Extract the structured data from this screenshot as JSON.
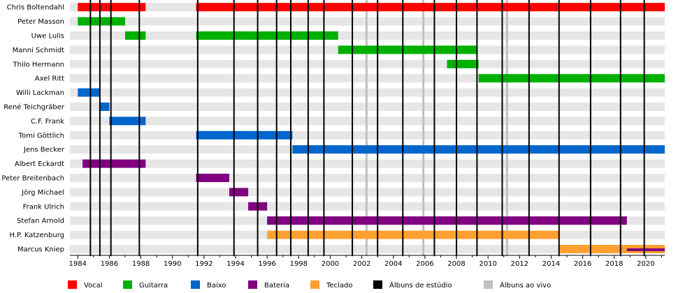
{
  "chart_data": {
    "type": "timeline",
    "xlim": [
      1983.5,
      2021.2
    ],
    "x_ticks": [
      1984,
      1986,
      1988,
      1990,
      1992,
      1994,
      1996,
      1998,
      2000,
      2002,
      2004,
      2006,
      2008,
      2010,
      2012,
      2014,
      2016,
      2018,
      2020
    ],
    "x_minor_ticks_per_year": true,
    "grid": "alternating row stripes",
    "legend_placement": "bottom",
    "roles": [
      {
        "key": "vocal",
        "label": "Vocal",
        "color": "#ff0000"
      },
      {
        "key": "guitarra",
        "label": "Guitarra",
        "color": "#00b000"
      },
      {
        "key": "baixo",
        "label": "Baixo",
        "color": "#0066cc"
      },
      {
        "key": "bateria",
        "label": "Bateria",
        "color": "#800080"
      },
      {
        "key": "teclado",
        "label": "Teclado",
        "color": "#ffa030"
      }
    ],
    "members": [
      {
        "name": "Chris Boltendahl",
        "periods": [
          {
            "role": "vocal",
            "start": 1984.0,
            "end": 1988.3
          },
          {
            "role": "vocal",
            "start": 1991.5,
            "end": 2021.2
          }
        ]
      },
      {
        "name": "Peter Masson",
        "periods": [
          {
            "role": "guitarra",
            "start": 1984.0,
            "end": 1987.0
          }
        ]
      },
      {
        "name": "Uwe Lulis",
        "periods": [
          {
            "role": "guitarra",
            "start": 1987.0,
            "end": 1988.3
          },
          {
            "role": "guitarra",
            "start": 1991.5,
            "end": 2000.5
          }
        ]
      },
      {
        "name": "Manni Schmidt",
        "periods": [
          {
            "role": "guitarra",
            "start": 2000.5,
            "end": 2009.3
          }
        ]
      },
      {
        "name": "Thilo Hermann",
        "periods": [
          {
            "role": "guitarra",
            "start": 2007.4,
            "end": 2009.4
          }
        ]
      },
      {
        "name": "Axel Ritt",
        "periods": [
          {
            "role": "guitarra",
            "start": 2009.4,
            "end": 2021.2
          }
        ]
      },
      {
        "name": "Willi Lackman",
        "periods": [
          {
            "role": "baixo",
            "start": 1984.0,
            "end": 1985.4
          }
        ]
      },
      {
        "name": "René Teichgräber",
        "periods": [
          {
            "role": "baixo",
            "start": 1985.4,
            "end": 1986.0
          }
        ]
      },
      {
        "name": "C.F. Frank",
        "periods": [
          {
            "role": "baixo",
            "start": 1986.0,
            "end": 1988.3
          }
        ]
      },
      {
        "name": "Tomi Göttlich",
        "periods": [
          {
            "role": "baixo",
            "start": 1991.5,
            "end": 1997.6
          }
        ]
      },
      {
        "name": "Jens Becker",
        "periods": [
          {
            "role": "baixo",
            "start": 1997.6,
            "end": 2021.2
          }
        ]
      },
      {
        "name": "Albert Eckardt",
        "periods": [
          {
            "role": "bateria",
            "start": 1984.3,
            "end": 1988.3
          }
        ]
      },
      {
        "name": "Peter Breitenbach",
        "periods": [
          {
            "role": "bateria",
            "start": 1991.5,
            "end": 1993.6
          }
        ]
      },
      {
        "name": "Jörg Michael",
        "periods": [
          {
            "role": "bateria",
            "start": 1993.6,
            "end": 1994.8
          }
        ]
      },
      {
        "name": "Frank Ulrich",
        "periods": [
          {
            "role": "bateria",
            "start": 1994.8,
            "end": 1996.0
          }
        ]
      },
      {
        "name": "Stefan Arnold",
        "periods": [
          {
            "role": "bateria",
            "start": 1996.0,
            "end": 2018.8
          }
        ]
      },
      {
        "name": "H.P. Katzenburg",
        "periods": [
          {
            "role": "teclado",
            "start": 1996.0,
            "end": 2014.5
          }
        ]
      },
      {
        "name": "Marcus Kniep",
        "periods": [
          {
            "role": "teclado",
            "start": 2014.5,
            "end": 2021.2
          },
          {
            "role": "bateria",
            "start": 2018.8,
            "end": 2021.2
          }
        ]
      }
    ],
    "studio_albums": [
      1984.8,
      1985.4,
      1986.1,
      1987.9,
      1991.6,
      1993.9,
      1995.4,
      1996.6,
      1997.5,
      1998.6,
      1999.6,
      2001.4,
      2003.0,
      2004.6,
      2006.6,
      2008.0,
      2009.3,
      2010.9,
      2012.6,
      2014.5,
      2016.5,
      2018.4,
      2019.9
    ],
    "live_albums": [
      2002.3,
      2005.9,
      2011.2
    ],
    "legend": [
      {
        "label": "Vocal",
        "color": "#ff0000"
      },
      {
        "label": "Guitarra",
        "color": "#00b000"
      },
      {
        "label": "Baixo",
        "color": "#0066cc"
      },
      {
        "label": "Bateria",
        "color": "#800080"
      },
      {
        "label": "Teclado",
        "color": "#ffa030"
      },
      {
        "label": "Álbuns de estúdio",
        "color": "#000000"
      },
      {
        "label": "Álbuns ao vivo",
        "color": "#c0c0c0"
      }
    ]
  }
}
